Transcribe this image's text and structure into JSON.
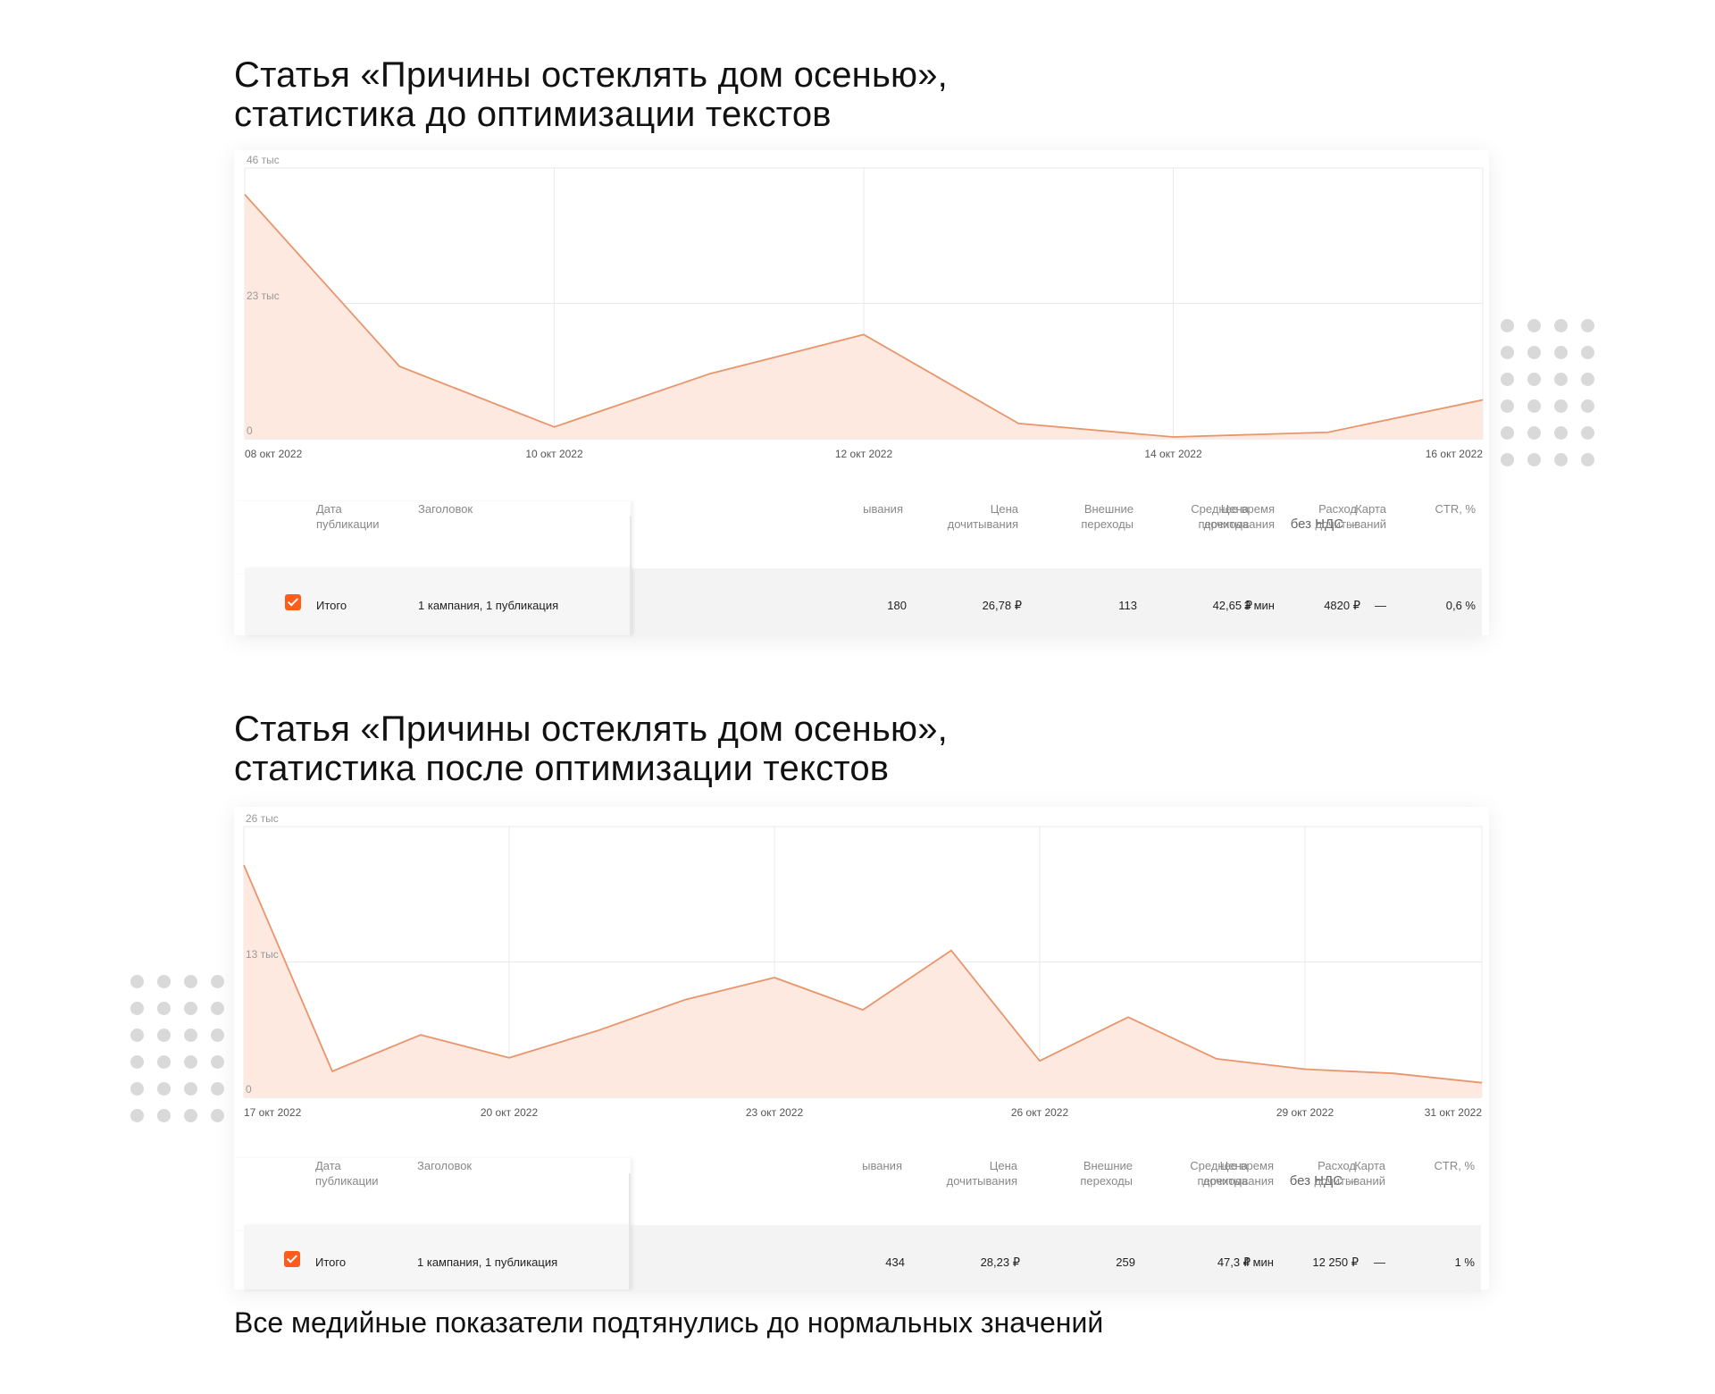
{
  "charts": [
    {
      "title_lines": [
        "Статья «Причины остеклять дом осенью»,",
        "статистика до оптимизации текстов"
      ],
      "chart_data": {
        "type": "area",
        "x": [
          "08 окт 2022",
          "09 окт 2022",
          "10 окт 2022",
          "11 окт 2022",
          "12 окт 2022",
          "13 окт 2022",
          "14 окт 2022",
          "15 окт 2022",
          "16 окт 2022"
        ],
        "values": [
          41500,
          12300,
          2000,
          11000,
          17700,
          2600,
          300,
          1100,
          6600
        ],
        "ylim": [
          0,
          46000
        ],
        "y_ticks": [
          {
            "value": 0,
            "label": "0"
          },
          {
            "value": 23000,
            "label": "23 тыс"
          },
          {
            "value": 46000,
            "label": "46 тыс"
          }
        ],
        "x_ticks": [
          "08 окт 2022",
          "10 окт 2022",
          "12 окт 2022",
          "14 окт 2022",
          "16 окт 2022"
        ],
        "grid": true,
        "line_color": "#e8956b",
        "fill_color": "#fde9e0"
      },
      "table": {
        "headers": {
          "date": [
            "Дата",
            "публикации"
          ],
          "title": [
            "Заголовок"
          ],
          "reads": [
            "ывания"
          ],
          "read_price": [
            "Цена",
            "дочитывания"
          ],
          "external": [
            "Внешние",
            "переходы"
          ],
          "click_price": [
            "Цена",
            "перехода"
          ],
          "spend": [
            "Расход",
            "без НДС"
          ],
          "avg_time": [
            "Среднее время",
            "дочитывания"
          ],
          "map": [
            "Карта",
            "дочитываний"
          ],
          "ctr": [
            "CTR, %"
          ]
        },
        "totals": {
          "label": "Итого",
          "title": "1 кампания, 1 публикация",
          "reads": "180",
          "read_price": "26,78 ₽",
          "external": "113",
          "click_price": "42,65 ₽",
          "spend": "4820 ₽",
          "avg_time": "3 мин",
          "map": "—",
          "ctr": "0,6 %"
        }
      }
    },
    {
      "title_lines": [
        "Статья «Причины остеклять дом осенью»,",
        "статистика после оптимизации текстов"
      ],
      "chart_data": {
        "type": "area",
        "x": [
          "17 окт 2022",
          "18 окт 2022",
          "19 окт 2022",
          "20 окт 2022",
          "21 окт 2022",
          "22 окт 2022",
          "23 окт 2022",
          "24 окт 2022",
          "25 окт 2022",
          "26 окт 2022",
          "27 окт 2022",
          "28 окт 2022",
          "29 окт 2022",
          "30 окт 2022",
          "31 окт 2022"
        ],
        "values": [
          22300,
          2500,
          6000,
          3800,
          6400,
          9400,
          11500,
          8400,
          14100,
          3500,
          7700,
          3700,
          2700,
          2300,
          1400
        ],
        "ylim": [
          0,
          26000
        ],
        "y_ticks": [
          {
            "value": 0,
            "label": "0"
          },
          {
            "value": 13000,
            "label": "13 тыс"
          },
          {
            "value": 26000,
            "label": "26 тыс"
          }
        ],
        "x_ticks": [
          "17 окт 2022",
          "20 окт 2022",
          "23 окт 2022",
          "26 окт 2022",
          "29 окт 2022",
          "31 окт 2022"
        ],
        "grid": true,
        "line_color": "#e8956b",
        "fill_color": "#fde9e0"
      },
      "table": {
        "headers": {
          "date": [
            "Дата",
            "публикации"
          ],
          "title": [
            "Заголовок"
          ],
          "reads": [
            "ывания"
          ],
          "read_price": [
            "Цена",
            "дочитывания"
          ],
          "external": [
            "Внешние",
            "переходы"
          ],
          "click_price": [
            "Цена",
            "перехода"
          ],
          "spend": [
            "Расход",
            "без НДС"
          ],
          "avg_time": [
            "Среднее время",
            "дочитывания"
          ],
          "map": [
            "Карта",
            "дочитываний"
          ],
          "ctr": [
            "CTR, %"
          ]
        },
        "totals": {
          "label": "Итого",
          "title": "1 кампания, 1 публикация",
          "reads": "434",
          "read_price": "28,23 ₽",
          "external": "259",
          "click_price": "47,3 ₽",
          "spend": "12 250 ₽",
          "avg_time": "4 мин",
          "map": "—",
          "ctr": "1 %"
        }
      }
    }
  ],
  "footer": "Все медийные показатели подтянулись до нормальных значений",
  "decor": {
    "dots_color": "#d9d9d9",
    "accent": "#fc5c1c"
  }
}
